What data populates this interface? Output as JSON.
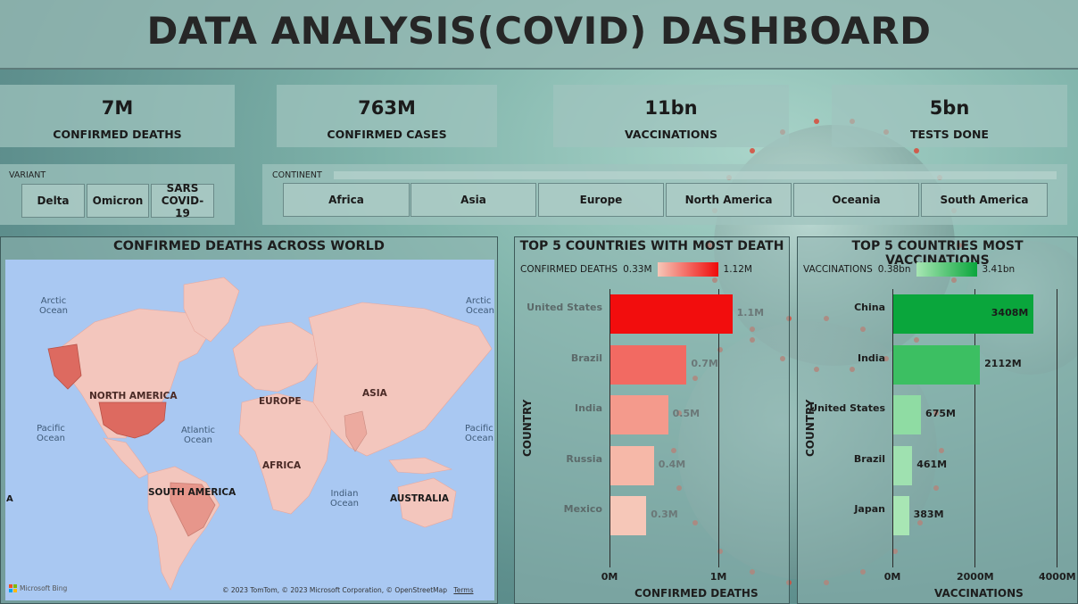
{
  "title": "DATA ANALYSIS(COVID) DASHBOARD",
  "kpis": [
    {
      "value": "7M",
      "label": "CONFIRMED DEATHS"
    },
    {
      "value": "763M",
      "label": "CONFIRMED CASES"
    },
    {
      "value": "11bn",
      "label": "VACCINATIONS"
    },
    {
      "value": "5bn",
      "label": "TESTS DONE"
    }
  ],
  "variant": {
    "title": "VARIANT",
    "options": [
      "Delta",
      "Omicron",
      "SARS COVID-19"
    ]
  },
  "continent": {
    "title": "CONTINENT",
    "options": [
      "Africa",
      "Asia",
      "Europe",
      "North America",
      "Oceania",
      "South America"
    ]
  },
  "map": {
    "title": "CONFIRMED DEATHS ACROSS WORLD",
    "labels": {
      "arctic_left": "Arctic Ocean",
      "arctic_right": "Arctic Ocean",
      "north_america": "NORTH AMERICA",
      "europe": "EUROPE",
      "asia": "ASIA",
      "pacific_left": "Pacific Ocean",
      "pacific_right": "Pacific Ocean",
      "atlantic": "Atlantic Ocean",
      "africa": "AFRICA",
      "south_america": "SOUTH AMERICA",
      "indian": "Indian Ocean",
      "australia": "AUSTRALIA",
      "edge": "A"
    },
    "attribution": "© 2023 TomTom, © 2023 Microsoft Corporation, © OpenStreetMap",
    "terms": "Terms",
    "brand": "Microsoft Bing",
    "colors": {
      "ocean": "#a9c8f2",
      "land": "#f3c6bd",
      "high": "#dd6a60"
    }
  },
  "chart_data": [
    {
      "type": "bar",
      "orientation": "horizontal",
      "title": "TOP 5 COUNTRIES WITH MOST DEATH",
      "legend": {
        "label": "CONFIRMED DEATHS",
        "min": "0.33M",
        "max": "1.12M",
        "min_color": "#f6c7b8",
        "max_color": "#f00a0a"
      },
      "categories": [
        "United States",
        "Brazil",
        "India",
        "Russia",
        "Mexico"
      ],
      "values": [
        1.12,
        0.7,
        0.53,
        0.4,
        0.33
      ],
      "value_labels": [
        "1.1M",
        "0.7M",
        "0.5M",
        "0.4M",
        "0.3M"
      ],
      "colors": [
        "#f20d0d",
        "#f26a62",
        "#f49a8c",
        "#f6b8a8",
        "#f6c7b8"
      ],
      "xlabel": "CONFIRMED DEATHS",
      "ylabel": "COUNTRY",
      "xlim": [
        0,
        1.0
      ],
      "xticks": [
        "0M",
        "1M"
      ]
    },
    {
      "type": "bar",
      "orientation": "horizontal",
      "title": "TOP 5 COUNTRIES MOST VACCINATIONS",
      "legend": {
        "label": "VACCINATIONS",
        "min": "0.38bn",
        "max": "3.41bn",
        "min_color": "#a8e6b4",
        "max_color": "#0aa63c"
      },
      "categories": [
        "China",
        "India",
        "United States",
        "Brazil",
        "Japan"
      ],
      "values": [
        3408,
        2112,
        675,
        461,
        383
      ],
      "value_labels": [
        "3408M",
        "2112M",
        "675M",
        "461M",
        "383M"
      ],
      "colors": [
        "#0aa63c",
        "#3cbf62",
        "#8fdca3",
        "#9fe1b0",
        "#a8e6b4"
      ],
      "xlabel": "VACCINATIONS",
      "ylabel": "COUNTRY",
      "xlim": [
        0,
        4000
      ],
      "xticks": [
        "0M",
        "2000M",
        "4000M"
      ]
    }
  ]
}
